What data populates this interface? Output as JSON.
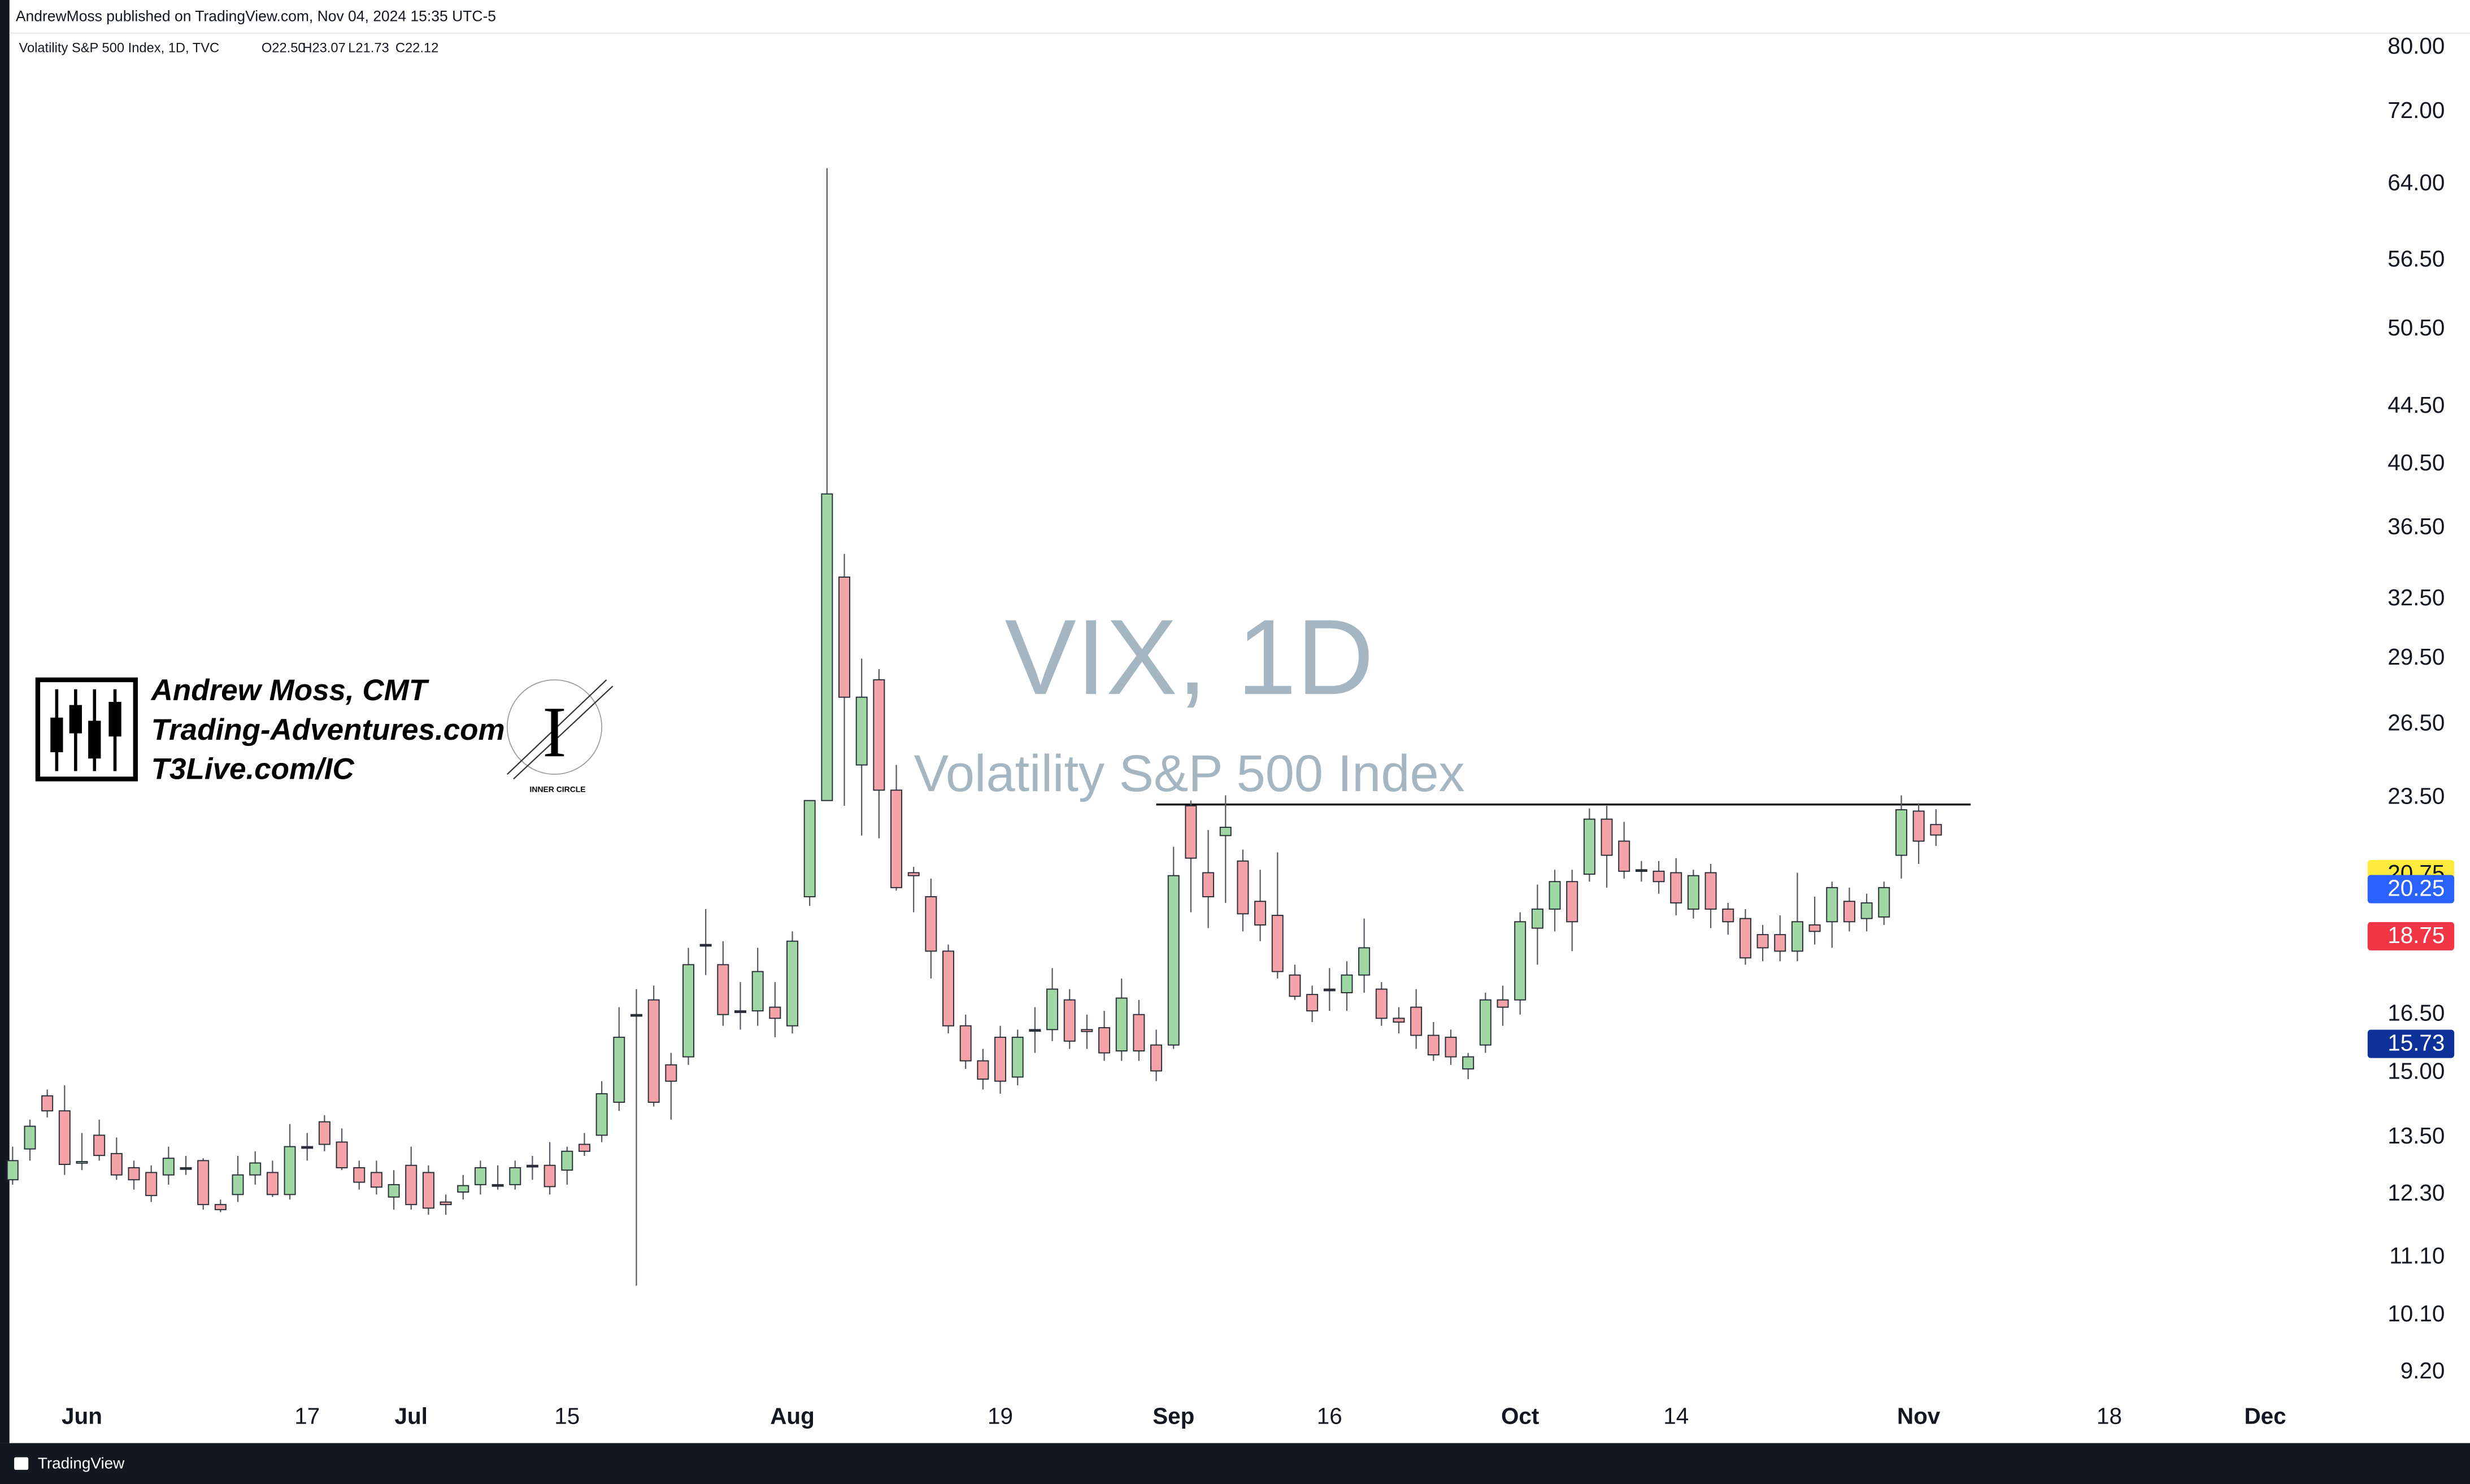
{
  "header": {
    "published": "AndrewMoss published on TradingView.com, Nov 04, 2024 15:35 UTC-5",
    "symbol": "Volatility S&P 500 Index, 1D, TVC",
    "ohlc": [
      "O22.50",
      "H23.07",
      "L21.73",
      "C22.12"
    ]
  },
  "logo": {
    "lines": [
      "Andrew Moss, CMT",
      "Trading-Adventures.com",
      "T3Live.com/IC"
    ],
    "mark": "I",
    "badge": "INNER CIRCLE"
  },
  "footer": {
    "brand": "TradingView"
  },
  "chart_data": {
    "type": "candlestick",
    "title": "VIX, 1D",
    "subtitle": "Volatility S&P 500 Index",
    "up_color": "#9fd8a4",
    "down_color": "#f4a3a8",
    "border_color": "#2a2e39",
    "log_scale": true,
    "grid": false,
    "xlim": [
      0,
      135
    ],
    "xticks": [
      {
        "value": 4,
        "label": "Jun"
      },
      17,
      {
        "value": 23,
        "label": "Jul"
      },
      {
        "value": 32,
        "label": "15"
      },
      {
        "value": 45,
        "label": "Aug"
      },
      {
        "value": 57,
        "label": "19"
      },
      {
        "value": 67,
        "label": "Sep"
      },
      {
        "value": 76,
        "label": "16"
      },
      {
        "value": 87,
        "label": "Oct"
      },
      {
        "value": 96,
        "label": "14"
      },
      {
        "value": 110,
        "label": "Nov"
      },
      {
        "value": 121,
        "label": "18"
      },
      {
        "value": 130,
        "label": "Dec"
      }
    ],
    "ylim": [
      8.9,
      81.7
    ],
    "yticks": [
      {
        "value": 80,
        "label": "80.00"
      },
      {
        "value": 72,
        "label": "72.00"
      },
      {
        "value": 64,
        "label": "64.00"
      },
      {
        "value": 56.5,
        "label": "56.50"
      },
      {
        "value": 50.5,
        "label": "50.50"
      },
      {
        "value": 44.5,
        "label": "44.50"
      },
      {
        "value": 40.5,
        "label": "40.50"
      },
      {
        "value": 36.5,
        "label": "36.50"
      },
      {
        "value": 32.5,
        "label": "32.50"
      },
      {
        "value": 29.5,
        "label": "29.50"
      },
      {
        "value": 26.5,
        "label": "26.50"
      },
      {
        "value": 23.5,
        "label": "23.50"
      },
      {
        "value": 16.5,
        "label": "16.50"
      },
      {
        "value": 15,
        "label": "15.00"
      },
      {
        "value": 13.5,
        "label": "13.50"
      },
      {
        "value": 12.3,
        "label": "12.30"
      },
      {
        "value": 11.1,
        "label": "11.10"
      },
      {
        "value": 10.1,
        "label": "10.10"
      },
      {
        "value": 9.2,
        "label": "9.20"
      }
    ],
    "price_labels": [
      {
        "value": 20.75,
        "color": "#ffeb3b",
        "text_color": "#131722"
      },
      {
        "value": 20.25,
        "color": "#2962ff",
        "text_color": "#ffffff"
      },
      {
        "value": 18.75,
        "color": "#f23645",
        "text_color": "#ffffff"
      },
      {
        "value": 15.73,
        "color": "#0c3299",
        "text_color": "#ffffff"
      }
    ],
    "level": {
      "value": 23.25,
      "from": 66,
      "to": 113,
      "color": "#000000"
    },
    "open": [
      12.6,
      13.25,
      14.45,
      14.1,
      12.95,
      13.55,
      13.15,
      12.85,
      12.75,
      12.7,
      12.85,
      13.0,
      12.1,
      12.3,
      12.7,
      12.75,
      12.3,
      13.3,
      13.85,
      13.4,
      12.85,
      12.75,
      12.25,
      12.9,
      12.75,
      12.15,
      12.35,
      12.5,
      12.5,
      12.5,
      12.9,
      12.9,
      12.8,
      13.35,
      13.55,
      14.3,
      16.5,
      16.9,
      15.2,
      15.4,
      18.5,
      17.9,
      16.6,
      16.6,
      16.7,
      16.2,
      20.0,
      23.4,
      33.7,
      24.8,
      28.5,
      23.8,
      20.8,
      20.0,
      18.3,
      16.2,
      15.3,
      15.9,
      14.9,
      16.1,
      16.1,
      16.9,
      16.1,
      16.15,
      15.55,
      16.5,
      15.7,
      15.7,
      23.2,
      20.8,
      22.1,
      21.2,
      19.85,
      19.4,
      17.6,
      17.05,
      17.2,
      17.1,
      17.6,
      17.2,
      16.4,
      16.7,
      15.95,
      15.9,
      15.1,
      15.7,
      16.9,
      16.9,
      19.0,
      19.6,
      20.5,
      20.75,
      22.7,
      21.9,
      20.9,
      20.85,
      20.8,
      19.6,
      20.8,
      19.6,
      19.3,
      18.8,
      18.8,
      18.3,
      19.1,
      19.2,
      19.85,
      19.3,
      19.35,
      21.4,
      23.0,
      22.5
    ],
    "high": [
      13.3,
      13.9,
      14.6,
      14.7,
      13.6,
      13.9,
      13.5,
      13.0,
      12.9,
      13.3,
      13.1,
      13.05,
      12.2,
      13.1,
      13.2,
      13.0,
      13.8,
      13.6,
      14.0,
      13.7,
      13.0,
      13.0,
      12.8,
      13.3,
      12.9,
      12.3,
      12.7,
      13.0,
      12.9,
      13.0,
      13.1,
      13.4,
      13.3,
      13.6,
      14.8,
      16.7,
      17.2,
      17.3,
      15.5,
      18.4,
      19.6,
      18.6,
      17.4,
      18.4,
      17.4,
      18.9,
      23.4,
      65.7,
      35.0,
      29.5,
      29.0,
      24.8,
      21.0,
      20.6,
      18.5,
      16.5,
      15.6,
      16.2,
      16.1,
      16.7,
      17.8,
      17.2,
      16.5,
      16.6,
      17.5,
      16.9,
      16.1,
      21.7,
      23.4,
      22.3,
      23.6,
      21.6,
      20.9,
      21.5,
      17.9,
      17.3,
      17.8,
      18.0,
      19.3,
      17.4,
      16.7,
      17.2,
      16.3,
      16.1,
      15.5,
      17.1,
      17.3,
      19.5,
      20.4,
      20.9,
      20.9,
      23.1,
      23.2,
      22.6,
      21.2,
      21.2,
      21.3,
      20.9,
      21.1,
      19.8,
      19.6,
      19.1,
      19.4,
      20.8,
      20.0,
      20.5,
      20.3,
      20.1,
      20.5,
      23.6,
      23.3,
      23.07
    ],
    "low": [
      12.5,
      13.0,
      13.95,
      12.7,
      12.8,
      13.0,
      12.6,
      12.4,
      12.15,
      12.5,
      12.7,
      12.0,
      11.95,
      12.15,
      12.5,
      12.25,
      12.2,
      13.0,
      13.2,
      12.8,
      12.4,
      12.3,
      12.0,
      12.0,
      11.9,
      11.9,
      12.2,
      12.3,
      12.4,
      12.4,
      12.6,
      12.3,
      12.5,
      13.1,
      13.4,
      14.1,
      10.6,
      14.2,
      13.9,
      15.2,
      17.6,
      16.2,
      16.1,
      16.2,
      15.9,
      16.0,
      19.7,
      23.4,
      23.2,
      22.1,
      22.0,
      20.2,
      19.5,
      17.5,
      16.0,
      15.1,
      14.6,
      14.5,
      14.7,
      15.5,
      15.8,
      15.6,
      15.6,
      15.3,
      15.3,
      15.3,
      14.8,
      15.6,
      19.5,
      19.0,
      19.8,
      18.9,
      18.6,
      17.5,
      16.9,
      16.3,
      16.6,
      16.6,
      17.1,
      16.2,
      16.0,
      15.6,
      15.3,
      15.2,
      14.85,
      15.5,
      16.2,
      16.5,
      17.9,
      18.9,
      18.3,
      20.5,
      20.3,
      20.6,
      20.5,
      20.1,
      19.4,
      19.3,
      19.0,
      18.8,
      17.9,
      18.0,
      18.0,
      18.0,
      18.5,
      18.4,
      18.9,
      18.9,
      19.1,
      20.6,
      21.1,
      21.73
    ],
    "close": [
      13.0,
      13.75,
      14.1,
      12.92,
      12.98,
      13.11,
      12.7,
      12.6,
      12.28,
      13.05,
      12.85,
      12.1,
      12.0,
      12.7,
      12.95,
      12.3,
      13.3,
      13.3,
      13.35,
      12.85,
      12.55,
      12.45,
      12.5,
      12.1,
      12.03,
      12.1,
      12.48,
      12.85,
      12.5,
      12.85,
      12.9,
      12.46,
      13.2,
      13.2,
      14.5,
      15.9,
      16.5,
      14.3,
      14.8,
      17.9,
      18.5,
      16.5,
      16.6,
      17.7,
      16.4,
      18.6,
      23.4,
      38.6,
      27.7,
      27.7,
      23.8,
      20.3,
      20.7,
      18.3,
      16.2,
      15.3,
      14.85,
      14.8,
      15.9,
      16.1,
      17.2,
      15.8,
      16.05,
      15.5,
      16.95,
      15.55,
      15.05,
      20.7,
      21.3,
      20.0,
      22.4,
      19.45,
      19.1,
      17.7,
      17.0,
      16.6,
      17.2,
      17.6,
      18.4,
      16.4,
      16.3,
      15.95,
      15.45,
      15.4,
      15.4,
      16.9,
      16.7,
      19.2,
      19.6,
      20.5,
      19.2,
      22.7,
      21.4,
      20.85,
      20.9,
      20.5,
      19.8,
      20.7,
      19.6,
      19.2,
      18.1,
      18.4,
      18.3,
      19.2,
      18.9,
      20.3,
      19.2,
      19.8,
      20.3,
      23.05,
      21.9,
      22.12
    ]
  }
}
